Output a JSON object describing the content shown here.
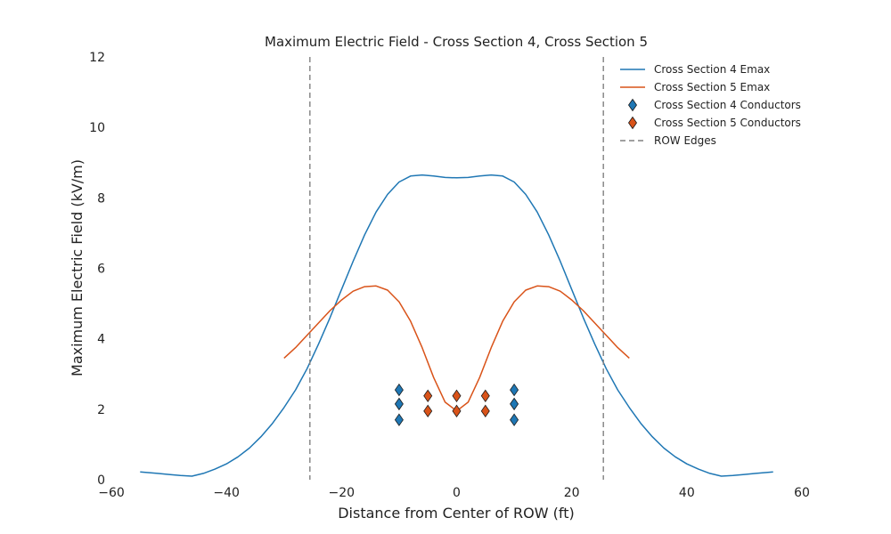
{
  "chart_data": {
    "type": "line",
    "title": "Maximum Electric Field - Cross Section 4, Cross Section 5",
    "xlabel": "Distance from Center of ROW (ft)",
    "ylabel": "Maximum Electric Field (kV/m)",
    "xlim": [
      -60,
      60
    ],
    "ylim": [
      0,
      12
    ],
    "xticks": [
      "−60",
      "−40",
      "−20",
      "0",
      "20",
      "40",
      "60"
    ],
    "xtick_values": [
      -60,
      -40,
      -20,
      0,
      20,
      40,
      60
    ],
    "yticks": [
      "0",
      "2",
      "4",
      "6",
      "8",
      "10",
      "12"
    ],
    "ytick_values": [
      0,
      2,
      4,
      6,
      8,
      10,
      12
    ],
    "grid": false,
    "legend_position": "top-right",
    "series": [
      {
        "name": "Cross Section 4 Emax",
        "kind": "line",
        "color": "#1f77b4",
        "x": [
          -55,
          -52,
          -50,
          -48,
          -46,
          -44,
          -42,
          -40,
          -38,
          -36,
          -34,
          -32,
          -30,
          -28,
          -26,
          -24,
          -22,
          -20,
          -18,
          -16,
          -14,
          -12,
          -10,
          -8,
          -6,
          -4,
          -2,
          0,
          2,
          4,
          6,
          8,
          10,
          12,
          14,
          16,
          18,
          20,
          22,
          24,
          26,
          28,
          30,
          32,
          34,
          36,
          38,
          40,
          42,
          44,
          46,
          48,
          50,
          52,
          55
        ],
        "y": [
          0.22,
          0.18,
          0.15,
          0.12,
          0.1,
          0.18,
          0.3,
          0.45,
          0.65,
          0.9,
          1.22,
          1.6,
          2.05,
          2.55,
          3.15,
          3.85,
          4.6,
          5.4,
          6.2,
          6.95,
          7.6,
          8.1,
          8.45,
          8.62,
          8.65,
          8.62,
          8.58,
          8.57,
          8.58,
          8.62,
          8.65,
          8.62,
          8.45,
          8.1,
          7.6,
          6.95,
          6.2,
          5.4,
          4.6,
          3.85,
          3.15,
          2.55,
          2.05,
          1.6,
          1.22,
          0.9,
          0.65,
          0.45,
          0.3,
          0.18,
          0.1,
          0.12,
          0.15,
          0.18,
          0.22
        ]
      },
      {
        "name": "Cross Section 5 Emax",
        "kind": "line",
        "color": "#d95319",
        "x": [
          -30,
          -28,
          -26,
          -24,
          -22,
          -20,
          -18,
          -16,
          -14,
          -12,
          -10,
          -8,
          -6,
          -4,
          -2,
          0,
          2,
          4,
          6,
          8,
          10,
          12,
          14,
          16,
          18,
          20,
          22,
          24,
          26,
          28,
          30
        ],
        "y": [
          3.45,
          3.75,
          4.1,
          4.45,
          4.8,
          5.1,
          5.35,
          5.48,
          5.5,
          5.38,
          5.05,
          4.5,
          3.75,
          2.9,
          2.2,
          1.95,
          2.2,
          2.9,
          3.75,
          4.5,
          5.05,
          5.38,
          5.5,
          5.48,
          5.35,
          5.1,
          4.8,
          4.45,
          4.1,
          3.75,
          3.45
        ]
      },
      {
        "name": "Cross Section 4 Conductors",
        "kind": "scatter",
        "marker": "diamond",
        "color": "#1f77b4",
        "x": [
          -10,
          -10,
          -10,
          10,
          10,
          10
        ],
        "y": [
          2.55,
          2.15,
          1.7,
          2.55,
          2.15,
          1.7
        ]
      },
      {
        "name": "Cross Section 5 Conductors",
        "kind": "scatter",
        "marker": "diamond",
        "color": "#d95319",
        "x": [
          -5,
          -5,
          0,
          0,
          5,
          5
        ],
        "y": [
          2.38,
          1.95,
          2.38,
          1.95,
          2.38,
          1.95
        ]
      },
      {
        "name": "ROW Edges",
        "kind": "vline",
        "dash": "dashed",
        "color": "#808080",
        "x": [
          -25.5,
          25.5
        ]
      }
    ]
  }
}
